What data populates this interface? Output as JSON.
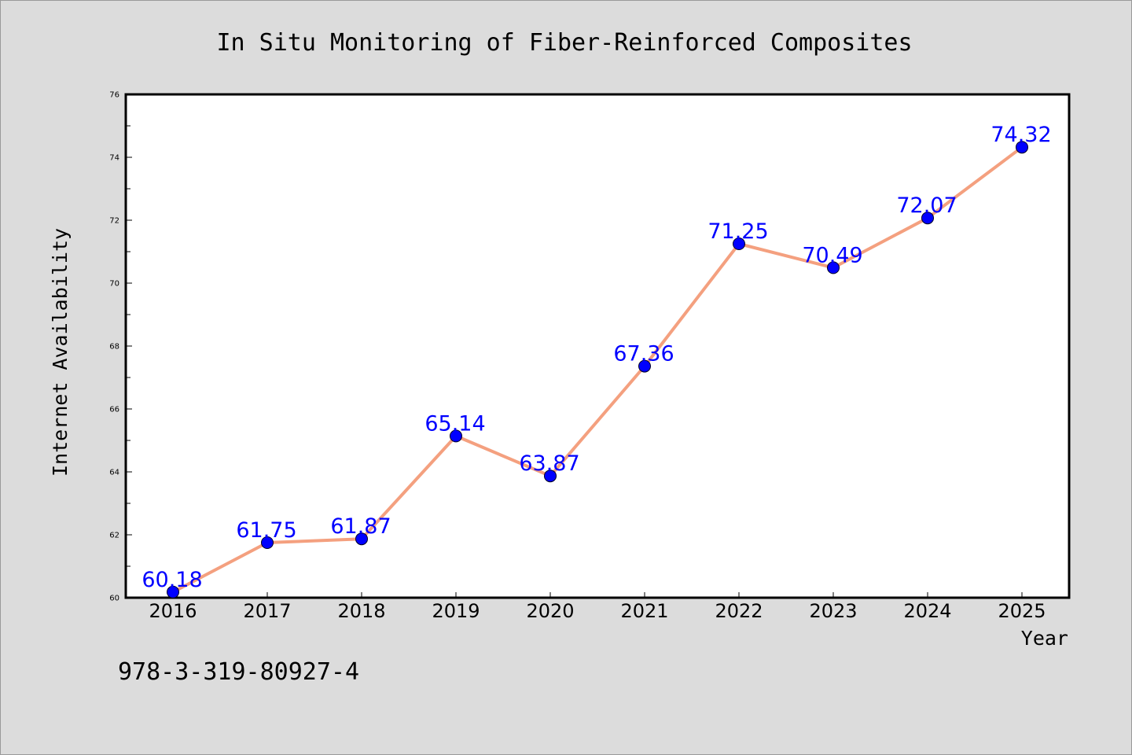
{
  "chart_data": {
    "type": "line",
    "title": "In Situ Monitoring of Fiber-Reinforced Composites",
    "xlabel": "Year",
    "ylabel": "Internet Availability",
    "categories": [
      "2016",
      "2017",
      "2018",
      "2019",
      "2020",
      "2021",
      "2022",
      "2023",
      "2024",
      "2025"
    ],
    "series": [
      {
        "values": [
          60.18,
          61.75,
          61.87,
          65.14,
          63.87,
          67.36,
          71.25,
          70.49,
          72.07,
          74.32
        ],
        "data_labels": [
          "60.18",
          "61.75",
          "61.87",
          "65.14",
          "63.87",
          "67.36",
          "71.25",
          "70.49",
          "72.07",
          "74.32"
        ],
        "line_color": "#f4a07f",
        "marker_color": "#0000ff"
      }
    ],
    "ylim": [
      60,
      76
    ],
    "yticks": [
      "60",
      "62",
      "64",
      "66",
      "68",
      "70",
      "72",
      "74",
      "76"
    ],
    "grid": false,
    "legend": "none"
  },
  "footer": {
    "isbn": "978-3-319-80927-4"
  },
  "colors": {
    "background": "#dcdcdc",
    "plot_background": "#ffffff",
    "line": "#f4a07f",
    "marker": "#0000ff",
    "data_label": "#0000ff"
  }
}
